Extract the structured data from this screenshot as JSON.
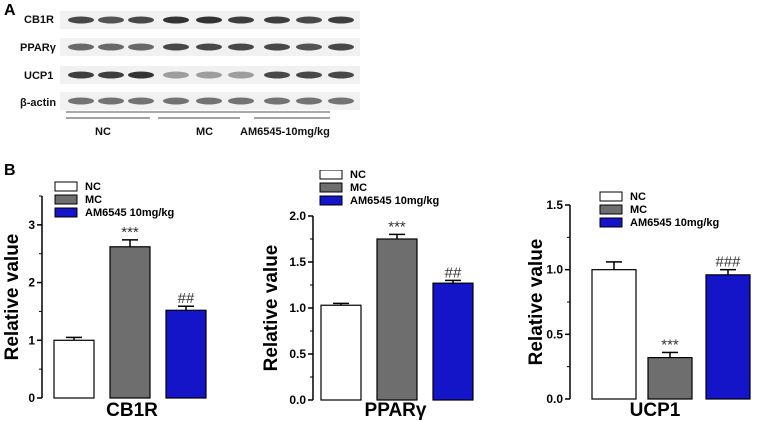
{
  "panels": {
    "a": "A",
    "b": "B"
  },
  "blot": {
    "rows": [
      {
        "label": "CB1R",
        "intensity": [
          0.85,
          0.8,
          0.85,
          0.95,
          0.95,
          0.9,
          0.9,
          0.85,
          0.9
        ]
      },
      {
        "label": "PPARγ",
        "intensity": [
          0.7,
          0.7,
          0.7,
          0.85,
          0.85,
          0.85,
          0.85,
          0.8,
          0.85
        ]
      },
      {
        "label": "UCP1",
        "intensity": [
          0.9,
          0.9,
          0.95,
          0.45,
          0.45,
          0.45,
          0.85,
          0.85,
          0.85
        ]
      },
      {
        "label": "β-actin",
        "intensity": [
          0.65,
          0.65,
          0.65,
          0.65,
          0.65,
          0.65,
          0.65,
          0.65,
          0.65
        ]
      }
    ],
    "groups": [
      "NC",
      "MC",
      "AM6545-10mg/kg"
    ]
  },
  "chart_data": [
    {
      "type": "bar",
      "title": "",
      "xlabel": "CB1R",
      "ylabel": "Relative value",
      "ylim": [
        0,
        3.5
      ],
      "yticks": [
        "0",
        "1",
        "2",
        "3"
      ],
      "categories": [
        "NC",
        "MC",
        "AM6545 10mg/kg"
      ],
      "values": [
        1.0,
        2.62,
        1.52
      ],
      "errors": [
        0.05,
        0.12,
        0.07
      ],
      "annotations": [
        "",
        "***",
        "##"
      ],
      "legend": [
        "NC",
        "MC",
        "AM6545 10mg/kg"
      ],
      "legend_position": "top-left"
    },
    {
      "type": "bar",
      "title": "",
      "xlabel": "PPARγ",
      "ylabel": "Relative value",
      "ylim": [
        0,
        2.0
      ],
      "yticks": [
        "0.0",
        "0.5",
        "1.0",
        "1.5",
        "2.0"
      ],
      "categories": [
        "NC",
        "MC",
        "AM6545 10mg/kg"
      ],
      "values": [
        1.03,
        1.75,
        1.27
      ],
      "errors": [
        0.02,
        0.05,
        0.03
      ],
      "annotations": [
        "",
        "***",
        "##"
      ],
      "legend": [
        "NC",
        "MC",
        "AM6545 10mg/kg"
      ],
      "legend_position": "top-left"
    },
    {
      "type": "bar",
      "title": "",
      "xlabel": "UCP1",
      "ylabel": "Relative value",
      "ylim": [
        0,
        1.5
      ],
      "yticks": [
        "0.0",
        "0.5",
        "1.0",
        "1.5"
      ],
      "categories": [
        "NC",
        "MC",
        "AM6545 10mg/kg"
      ],
      "values": [
        1.0,
        0.32,
        0.96
      ],
      "errors": [
        0.06,
        0.04,
        0.04
      ],
      "annotations": [
        "",
        "***",
        "###"
      ],
      "legend": [
        "NC",
        "MC",
        "AM6545 10mg/kg"
      ],
      "legend_position": "top-left"
    }
  ],
  "colors": {
    "nc": "#ffffff",
    "mc": "#6e6e6e",
    "am": "#1414c8"
  }
}
